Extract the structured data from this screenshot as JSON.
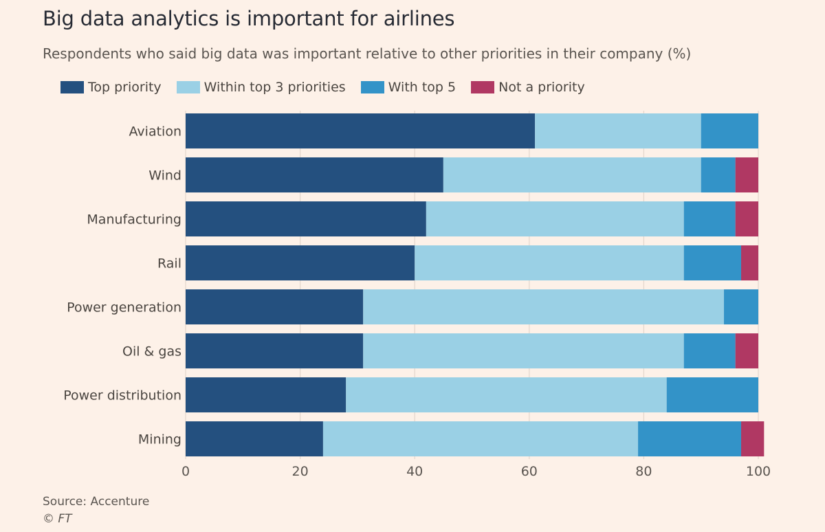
{
  "chart_data": {
    "type": "bar",
    "orientation": "horizontal",
    "stacked": true,
    "title": "Big data analytics is important for airlines",
    "subtitle": "Respondents who said big data was important relative to other priorities in their company (%)",
    "categories": [
      "Aviation",
      "Wind",
      "Manufacturing",
      "Rail",
      "Power generation",
      "Oil & gas",
      "Power distribution",
      "Mining"
    ],
    "series": [
      {
        "name": "Top priority",
        "color": "#24507f",
        "values": [
          61,
          45,
          42,
          40,
          31,
          31,
          28,
          24
        ]
      },
      {
        "name": "Within top 3 priorities",
        "color": "#9ad0e5",
        "values": [
          29,
          45,
          45,
          47,
          63,
          56,
          56,
          55
        ]
      },
      {
        "name": "With top 5",
        "color": "#3393c8",
        "values": [
          10,
          6,
          9,
          10,
          6,
          9,
          16,
          18
        ]
      },
      {
        "name": "Not a priority",
        "color": "#b03863",
        "values": [
          0,
          4,
          4,
          3,
          0,
          4,
          0,
          4
        ]
      }
    ],
    "xlim": [
      0,
      100
    ],
    "xticks": [
      "0",
      "20",
      "40",
      "60",
      "80",
      "100"
    ],
    "grid": true,
    "legend": "top-left"
  },
  "footer": {
    "source": "Source: Accenture",
    "copyright": "© FT"
  }
}
